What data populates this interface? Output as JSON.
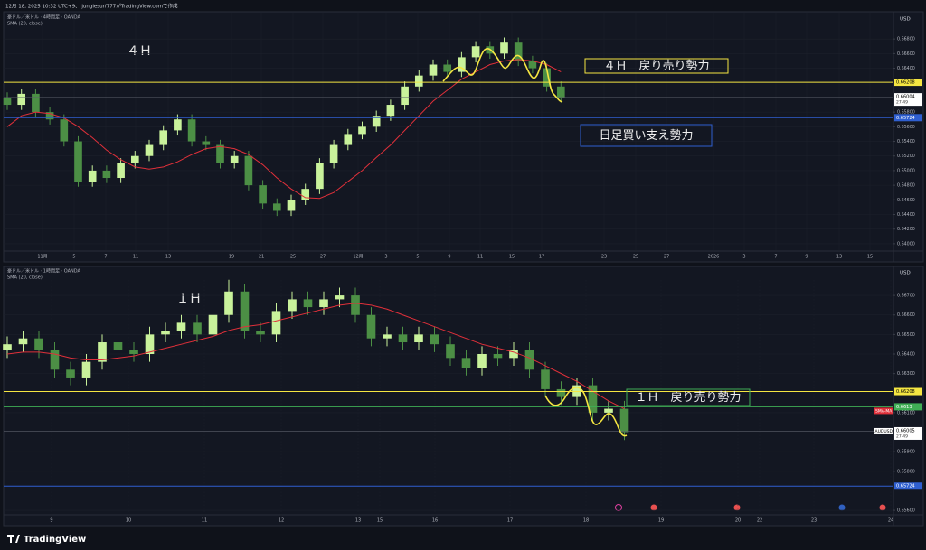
{
  "header": "12月 18, 2025 10:32 UTC+9、 junglesurf777がTradingView.comで作成",
  "footer": "TradingView",
  "chart_data": [
    {
      "type": "candlestick",
      "title": "豪ドル／米ドル · 4時間足 · OANDA",
      "subtitle": "SMA (20, close)",
      "currency": "USD",
      "label": "４Ｈ",
      "annotations": [
        {
          "text": "４Ｈ　戻り売り勢力",
          "color": "#f5e642"
        },
        {
          "text": "日足買い支え勢力",
          "color": "#2f5fd0"
        }
      ],
      "up_color": "#c9f29b",
      "down_color": "#4c8f45",
      "sma_color": "#e0303a",
      "grid": true,
      "ylim": [
        0.639,
        0.6716
      ],
      "yticks": [
        {
          "value": 0.64,
          "label": "0.64000"
        },
        {
          "value": 0.642,
          "label": "0.64200"
        },
        {
          "value": 0.644,
          "label": "0.64400"
        },
        {
          "value": 0.646,
          "label": "0.64600"
        },
        {
          "value": 0.648,
          "label": "0.64800"
        },
        {
          "value": 0.65,
          "label": "0.65000"
        },
        {
          "value": 0.652,
          "label": "0.65200"
        },
        {
          "value": 0.654,
          "label": "0.65400"
        },
        {
          "value": 0.656,
          "label": "0.65600"
        },
        {
          "value": 0.658,
          "label": "0.65800"
        },
        {
          "value": 0.664,
          "label": "0.66400"
        },
        {
          "value": 0.666,
          "label": "0.66600"
        },
        {
          "value": 0.668,
          "label": "0.66800"
        }
      ],
      "xlabels": [
        "11月",
        "5",
        "7",
        "11",
        "13",
        "19",
        "21",
        "25",
        "27",
        "12月",
        "3",
        "5",
        "9",
        "11",
        "15",
        "17",
        "23",
        "25",
        "27",
        "2026",
        "3",
        "7",
        "9",
        "13",
        "15"
      ],
      "open": [
        0.66,
        0.659,
        0.6605,
        0.658,
        0.657,
        0.654,
        0.6485,
        0.65,
        0.649,
        0.651,
        0.652,
        0.6535,
        0.6555,
        0.657,
        0.654,
        0.6535,
        0.651,
        0.652,
        0.648,
        0.6455,
        0.6445,
        0.646,
        0.6475,
        0.651,
        0.6535,
        0.655,
        0.656,
        0.6575,
        0.659,
        0.6615,
        0.663,
        0.6645,
        0.6635,
        0.6655,
        0.667,
        0.666,
        0.6675,
        0.665,
        0.664,
        0.6615
      ],
      "high": [
        0.6607,
        0.6612,
        0.6612,
        0.6587,
        0.6577,
        0.6547,
        0.6507,
        0.6507,
        0.6517,
        0.6527,
        0.6542,
        0.6562,
        0.6577,
        0.6577,
        0.6547,
        0.6542,
        0.6527,
        0.6527,
        0.6487,
        0.6462,
        0.6467,
        0.6482,
        0.6517,
        0.6542,
        0.6557,
        0.6567,
        0.6582,
        0.6597,
        0.6622,
        0.6637,
        0.6652,
        0.6652,
        0.6662,
        0.6677,
        0.6677,
        0.6682,
        0.6682,
        0.6657,
        0.6647,
        0.6622
      ],
      "low": [
        0.6583,
        0.6583,
        0.6573,
        0.6563,
        0.6533,
        0.6478,
        0.6478,
        0.6483,
        0.6483,
        0.6503,
        0.6513,
        0.6528,
        0.6548,
        0.6533,
        0.6528,
        0.6503,
        0.6503,
        0.6473,
        0.6448,
        0.6438,
        0.6438,
        0.6453,
        0.6468,
        0.6503,
        0.6528,
        0.6543,
        0.6553,
        0.6568,
        0.6583,
        0.6608,
        0.6623,
        0.6628,
        0.6628,
        0.6648,
        0.6653,
        0.6653,
        0.6643,
        0.6633,
        0.6608,
        0.6593
      ],
      "close": [
        0.659,
        0.6605,
        0.658,
        0.657,
        0.654,
        0.6485,
        0.65,
        0.649,
        0.651,
        0.652,
        0.6535,
        0.6555,
        0.657,
        0.654,
        0.6535,
        0.651,
        0.652,
        0.648,
        0.6455,
        0.6445,
        0.646,
        0.6475,
        0.651,
        0.6535,
        0.655,
        0.656,
        0.6575,
        0.659,
        0.6615,
        0.663,
        0.6645,
        0.6635,
        0.6655,
        0.667,
        0.666,
        0.6675,
        0.665,
        0.664,
        0.6615,
        0.66
      ],
      "sma": [
        0.656,
        0.6575,
        0.658,
        0.6578,
        0.6572,
        0.656,
        0.6545,
        0.6528,
        0.6515,
        0.6505,
        0.6502,
        0.6505,
        0.6512,
        0.6522,
        0.653,
        0.6533,
        0.653,
        0.6522,
        0.6508,
        0.649,
        0.6475,
        0.6463,
        0.6462,
        0.647,
        0.6485,
        0.65,
        0.6518,
        0.6535,
        0.6555,
        0.6575,
        0.6595,
        0.661,
        0.6625,
        0.6635,
        0.6645,
        0.665,
        0.6652,
        0.665,
        0.6645,
        0.6635
      ],
      "levels": [
        {
          "value": 0.66208,
          "color": "#f5e642"
        },
        {
          "value": 0.65724,
          "color": "#2f5fd0"
        }
      ],
      "last": {
        "value": 0.66004,
        "countdown": "27:49"
      }
    },
    {
      "type": "candlestick",
      "title": "豪ドル／米ドル · 1時間足 · OANDA",
      "subtitle": "SMA (20, close)",
      "currency": "USD",
      "label": "１Ｈ",
      "annotations": [
        {
          "text": "１Ｈ　戻り売り勢力",
          "color": "#3fae55"
        }
      ],
      "up_color": "#c9f29b",
      "down_color": "#4c8f45",
      "sma_color": "#e0303a",
      "grid": true,
      "ylim": [
        0.65568,
        0.66779
      ],
      "yticks": [
        {
          "value": 0.656,
          "label": "0.65600"
        },
        {
          "value": 0.658,
          "label": "0.65800"
        },
        {
          "value": 0.659,
          "label": "0.65900"
        },
        {
          "value": 0.661,
          "label": "0.66100"
        },
        {
          "value": 0.663,
          "label": "0.66300"
        },
        {
          "value": 0.664,
          "label": "0.66400"
        },
        {
          "value": 0.665,
          "label": "0.66500"
        },
        {
          "value": 0.666,
          "label": "0.66600"
        },
        {
          "value": 0.667,
          "label": "0.66700"
        }
      ],
      "xlabels": [
        "9",
        "10",
        "11",
        "12",
        "13",
        "15",
        "16",
        "17",
        "18",
        "19",
        "20",
        "22",
        "23",
        "24"
      ],
      "open": [
        0.6642,
        0.6645,
        0.6648,
        0.6642,
        0.6632,
        0.6628,
        0.6636,
        0.6646,
        0.6642,
        0.664,
        0.665,
        0.6652,
        0.6656,
        0.665,
        0.666,
        0.6672,
        0.6652,
        0.665,
        0.6662,
        0.6668,
        0.6664,
        0.6668,
        0.667,
        0.666,
        0.6648,
        0.665,
        0.6646,
        0.665,
        0.6645,
        0.6638,
        0.6633,
        0.664,
        0.6638,
        0.6642,
        0.6632,
        0.6622,
        0.6618,
        0.6624,
        0.661,
        0.6612
      ],
      "high": [
        0.6649,
        0.6652,
        0.6652,
        0.6646,
        0.6636,
        0.664,
        0.665,
        0.665,
        0.6646,
        0.6654,
        0.6656,
        0.666,
        0.666,
        0.6664,
        0.6678,
        0.6676,
        0.6656,
        0.6666,
        0.6672,
        0.6672,
        0.6672,
        0.6674,
        0.6674,
        0.6664,
        0.6654,
        0.6654,
        0.6654,
        0.6654,
        0.6649,
        0.6642,
        0.6644,
        0.6644,
        0.6646,
        0.6646,
        0.6636,
        0.6626,
        0.6628,
        0.6628,
        0.6616,
        0.6616
      ],
      "low": [
        0.6638,
        0.6641,
        0.6638,
        0.6628,
        0.6624,
        0.6624,
        0.6632,
        0.6638,
        0.6636,
        0.6636,
        0.6646,
        0.6648,
        0.6646,
        0.6646,
        0.6656,
        0.6648,
        0.6646,
        0.6646,
        0.6658,
        0.666,
        0.666,
        0.6664,
        0.6656,
        0.6644,
        0.6644,
        0.6642,
        0.6642,
        0.6641,
        0.6634,
        0.6629,
        0.6629,
        0.6634,
        0.6634,
        0.6628,
        0.6618,
        0.6614,
        0.6614,
        0.6606,
        0.6606,
        0.6596
      ],
      "close": [
        0.6645,
        0.6648,
        0.6642,
        0.6632,
        0.6628,
        0.6636,
        0.6646,
        0.6642,
        0.664,
        0.665,
        0.6652,
        0.6656,
        0.665,
        0.666,
        0.6672,
        0.6652,
        0.665,
        0.6662,
        0.6668,
        0.6664,
        0.6668,
        0.667,
        0.666,
        0.6648,
        0.665,
        0.6646,
        0.665,
        0.6645,
        0.6638,
        0.6633,
        0.664,
        0.6638,
        0.6642,
        0.6632,
        0.6622,
        0.6618,
        0.6624,
        0.661,
        0.6612,
        0.66
      ],
      "sma": [
        0.664,
        0.6641,
        0.6641,
        0.664,
        0.6638,
        0.6637,
        0.6637,
        0.6638,
        0.6639,
        0.6641,
        0.6643,
        0.6645,
        0.6647,
        0.6649,
        0.6652,
        0.6654,
        0.6655,
        0.6657,
        0.6659,
        0.6661,
        0.6663,
        0.6665,
        0.6666,
        0.6665,
        0.6663,
        0.666,
        0.6657,
        0.6654,
        0.6651,
        0.6648,
        0.6645,
        0.6643,
        0.6641,
        0.6638,
        0.6634,
        0.663,
        0.6626,
        0.6621,
        0.6616,
        0.6612
      ],
      "levels": [
        {
          "value": 0.66208,
          "color": "#f5e642"
        },
        {
          "value": 0.6613,
          "color": "#3fae55",
          "tag": "SMA-MA"
        },
        {
          "value": 0.65724,
          "color": "#2f5fd0"
        }
      ],
      "last": {
        "value": 0.66005,
        "countdown": "27:49",
        "symbol": "AUDUSD"
      }
    }
  ]
}
